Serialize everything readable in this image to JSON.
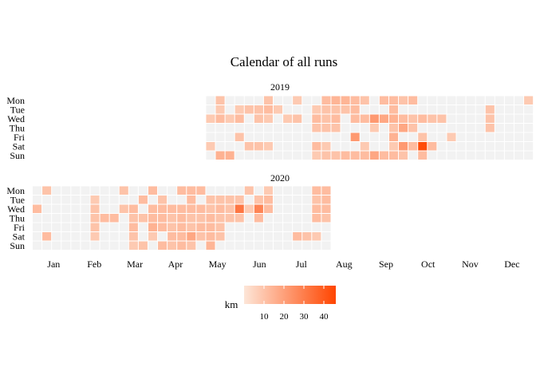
{
  "chart_data": {
    "type": "heatmap",
    "title": "Calendar of all runs",
    "legend_title": "km",
    "legend_ticks": [
      10,
      20,
      30,
      40
    ],
    "value_range": [
      0,
      46
    ],
    "color_low": "#fde6d8",
    "color_high": "#ff4500",
    "empty_color": "#f2f2f2",
    "weekdays": [
      "Mon",
      "Tue",
      "Wed",
      "Thu",
      "Fri",
      "Sat",
      "Sun"
    ],
    "months": [
      "Jan",
      "Feb",
      "Mar",
      "Apr",
      "May",
      "Jun",
      "Jul",
      "Aug",
      "Sep",
      "Oct",
      "Nov",
      "Dec"
    ],
    "panels": [
      {
        "year": "2019",
        "weeks_covered": [
          19,
          52
        ],
        "runs": [
          {
            "week": 19,
            "day": "Wed",
            "km": 8
          },
          {
            "week": 19,
            "day": "Sat",
            "km": 8
          },
          {
            "week": 20,
            "day": "Mon",
            "km": 10
          },
          {
            "week": 20,
            "day": "Tue",
            "km": 8
          },
          {
            "week": 20,
            "day": "Wed",
            "km": 12
          },
          {
            "week": 20,
            "day": "Sun",
            "km": 15
          },
          {
            "week": 21,
            "day": "Wed",
            "km": 8
          },
          {
            "week": 21,
            "day": "Sun",
            "km": 15
          },
          {
            "week": 22,
            "day": "Tue",
            "km": 8
          },
          {
            "week": 22,
            "day": "Wed",
            "km": 12
          },
          {
            "week": 22,
            "day": "Fri",
            "km": 10
          },
          {
            "week": 23,
            "day": "Tue",
            "km": 10
          },
          {
            "week": 23,
            "day": "Sat",
            "km": 10
          },
          {
            "week": 24,
            "day": "Tue",
            "km": 10
          },
          {
            "week": 24,
            "day": "Wed",
            "km": 10
          },
          {
            "week": 24,
            "day": "Sat",
            "km": 10
          },
          {
            "week": 25,
            "day": "Mon",
            "km": 10
          },
          {
            "week": 25,
            "day": "Tue",
            "km": 12
          },
          {
            "week": 25,
            "day": "Wed",
            "km": 8
          },
          {
            "week": 25,
            "day": "Sat",
            "km": 8
          },
          {
            "week": 26,
            "day": "Tue",
            "km": 8
          },
          {
            "week": 27,
            "day": "Wed",
            "km": 8
          },
          {
            "week": 28,
            "day": "Mon",
            "km": 8
          },
          {
            "week": 28,
            "day": "Wed",
            "km": 10
          },
          {
            "week": 30,
            "day": "Tue",
            "km": 8
          },
          {
            "week": 30,
            "day": "Wed",
            "km": 12
          },
          {
            "week": 30,
            "day": "Thu",
            "km": 10
          },
          {
            "week": 30,
            "day": "Sat",
            "km": 12
          },
          {
            "week": 30,
            "day": "Sun",
            "km": 8
          },
          {
            "week": 31,
            "day": "Mon",
            "km": 12
          },
          {
            "week": 31,
            "day": "Tue",
            "km": 10
          },
          {
            "week": 31,
            "day": "Wed",
            "km": 10
          },
          {
            "week": 31,
            "day": "Thu",
            "km": 10
          },
          {
            "week": 31,
            "day": "Sat",
            "km": 8
          },
          {
            "week": 31,
            "day": "Sun",
            "km": 10
          },
          {
            "week": 32,
            "day": "Mon",
            "km": 14
          },
          {
            "week": 32,
            "day": "Tue",
            "km": 10
          },
          {
            "week": 32,
            "day": "Wed",
            "km": 12
          },
          {
            "week": 32,
            "day": "Thu",
            "km": 10
          },
          {
            "week": 32,
            "day": "Sun",
            "km": 10
          },
          {
            "week": 33,
            "day": "Mon",
            "km": 14
          },
          {
            "week": 33,
            "day": "Tue",
            "km": 10
          },
          {
            "week": 33,
            "day": "Sun",
            "km": 12
          },
          {
            "week": 34,
            "day": "Mon",
            "km": 12
          },
          {
            "week": 34,
            "day": "Tue",
            "km": 12
          },
          {
            "week": 34,
            "day": "Wed",
            "km": 12
          },
          {
            "week": 34,
            "day": "Fri",
            "km": 22
          },
          {
            "week": 34,
            "day": "Sun",
            "km": 12
          },
          {
            "week": 35,
            "day": "Mon",
            "km": 10
          },
          {
            "week": 35,
            "day": "Wed",
            "km": 12
          },
          {
            "week": 35,
            "day": "Sat",
            "km": 8
          },
          {
            "week": 35,
            "day": "Sun",
            "km": 12
          },
          {
            "week": 36,
            "day": "Wed",
            "km": 22
          },
          {
            "week": 36,
            "day": "Thu",
            "km": 8
          },
          {
            "week": 36,
            "day": "Sun",
            "km": 18
          },
          {
            "week": 37,
            "day": "Mon",
            "km": 12
          },
          {
            "week": 37,
            "day": "Wed",
            "km": 18
          },
          {
            "week": 37,
            "day": "Sun",
            "km": 12
          },
          {
            "week": 38,
            "day": "Mon",
            "km": 12
          },
          {
            "week": 38,
            "day": "Tue",
            "km": 12
          },
          {
            "week": 38,
            "day": "Wed",
            "km": 15
          },
          {
            "week": 38,
            "day": "Thu",
            "km": 10
          },
          {
            "week": 38,
            "day": "Fri",
            "km": 15
          },
          {
            "week": 38,
            "day": "Sat",
            "km": 8
          },
          {
            "week": 38,
            "day": "Sun",
            "km": 12
          },
          {
            "week": 39,
            "day": "Mon",
            "km": 10
          },
          {
            "week": 39,
            "day": "Wed",
            "km": 12
          },
          {
            "week": 39,
            "day": "Thu",
            "km": 18
          },
          {
            "week": 39,
            "day": "Sat",
            "km": 22
          },
          {
            "week": 39,
            "day": "Sun",
            "km": 10
          },
          {
            "week": 40,
            "day": "Mon",
            "km": 12
          },
          {
            "week": 40,
            "day": "Wed",
            "km": 10
          },
          {
            "week": 40,
            "day": "Thu",
            "km": 10
          },
          {
            "week": 40,
            "day": "Sat",
            "km": 12
          },
          {
            "week": 41,
            "day": "Wed",
            "km": 12
          },
          {
            "week": 41,
            "day": "Fri",
            "km": 10
          },
          {
            "week": 41,
            "day": "Sat",
            "km": 44
          },
          {
            "week": 41,
            "day": "Sun",
            "km": 12
          },
          {
            "week": 42,
            "day": "Wed",
            "km": 10
          },
          {
            "week": 42,
            "day": "Sat",
            "km": 12
          },
          {
            "week": 43,
            "day": "Wed",
            "km": 10
          },
          {
            "week": 44,
            "day": "Fri",
            "km": 8
          },
          {
            "week": 48,
            "day": "Tue",
            "km": 10
          },
          {
            "week": 48,
            "day": "Wed",
            "km": 10
          },
          {
            "week": 48,
            "day": "Thu",
            "km": 10
          },
          {
            "week": 52,
            "day": "Mon",
            "km": 8
          }
        ]
      },
      {
        "year": "2020",
        "weeks_covered": [
          1,
          31
        ],
        "runs": [
          {
            "week": 1,
            "day": "Wed",
            "km": 12
          },
          {
            "week": 2,
            "day": "Mon",
            "km": 10
          },
          {
            "week": 2,
            "day": "Sat",
            "km": 12
          },
          {
            "week": 7,
            "day": "Tue",
            "km": 8
          },
          {
            "week": 7,
            "day": "Wed",
            "km": 10
          },
          {
            "week": 7,
            "day": "Thu",
            "km": 10
          },
          {
            "week": 7,
            "day": "Fri",
            "km": 10
          },
          {
            "week": 7,
            "day": "Sat",
            "km": 8
          },
          {
            "week": 8,
            "day": "Thu",
            "km": 12
          },
          {
            "week": 9,
            "day": "Thu",
            "km": 12
          },
          {
            "week": 10,
            "day": "Mon",
            "km": 10
          },
          {
            "week": 10,
            "day": "Wed",
            "km": 10
          },
          {
            "week": 11,
            "day": "Wed",
            "km": 12
          },
          {
            "week": 11,
            "day": "Thu",
            "km": 10
          },
          {
            "week": 11,
            "day": "Fri",
            "km": 12
          },
          {
            "week": 11,
            "day": "Sat",
            "km": 10
          },
          {
            "week": 11,
            "day": "Sun",
            "km": 8
          },
          {
            "week": 12,
            "day": "Tue",
            "km": 12
          },
          {
            "week": 12,
            "day": "Thu",
            "km": 10
          },
          {
            "week": 12,
            "day": "Sun",
            "km": 10
          },
          {
            "week": 13,
            "day": "Mon",
            "km": 12
          },
          {
            "week": 13,
            "day": "Wed",
            "km": 12
          },
          {
            "week": 13,
            "day": "Thu",
            "km": 12
          },
          {
            "week": 13,
            "day": "Fri",
            "km": 15
          },
          {
            "week": 13,
            "day": "Sat",
            "km": 8
          },
          {
            "week": 14,
            "day": "Tue",
            "km": 10
          },
          {
            "week": 14,
            "day": "Wed",
            "km": 12
          },
          {
            "week": 14,
            "day": "Thu",
            "km": 12
          },
          {
            "week": 14,
            "day": "Fri",
            "km": 12
          },
          {
            "week": 14,
            "day": "Sun",
            "km": 12
          },
          {
            "week": 15,
            "day": "Wed",
            "km": 12
          },
          {
            "week": 15,
            "day": "Thu",
            "km": 10
          },
          {
            "week": 15,
            "day": "Fri",
            "km": 10
          },
          {
            "week": 15,
            "day": "Sat",
            "km": 12
          },
          {
            "week": 15,
            "day": "Sun",
            "km": 10
          },
          {
            "week": 16,
            "day": "Mon",
            "km": 12
          },
          {
            "week": 16,
            "day": "Wed",
            "km": 12
          },
          {
            "week": 16,
            "day": "Thu",
            "km": 12
          },
          {
            "week": 16,
            "day": "Fri",
            "km": 12
          },
          {
            "week": 16,
            "day": "Sat",
            "km": 12
          },
          {
            "week": 16,
            "day": "Sun",
            "km": 12
          },
          {
            "week": 17,
            "day": "Mon",
            "km": 12
          },
          {
            "week": 17,
            "day": "Tue",
            "km": 12
          },
          {
            "week": 17,
            "day": "Wed",
            "km": 12
          },
          {
            "week": 17,
            "day": "Thu",
            "km": 10
          },
          {
            "week": 17,
            "day": "Fri",
            "km": 10
          },
          {
            "week": 17,
            "day": "Sat",
            "km": 18
          },
          {
            "week": 17,
            "day": "Sun",
            "km": 10
          },
          {
            "week": 18,
            "day": "Mon",
            "km": 12
          },
          {
            "week": 18,
            "day": "Wed",
            "km": 12
          },
          {
            "week": 18,
            "day": "Thu",
            "km": 10
          },
          {
            "week": 18,
            "day": "Fri",
            "km": 12
          },
          {
            "week": 18,
            "day": "Sat",
            "km": 10
          },
          {
            "week": 19,
            "day": "Tue",
            "km": 10
          },
          {
            "week": 19,
            "day": "Wed",
            "km": 10
          },
          {
            "week": 19,
            "day": "Thu",
            "km": 12
          },
          {
            "week": 19,
            "day": "Fri",
            "km": 12
          },
          {
            "week": 19,
            "day": "Sat",
            "km": 12
          },
          {
            "week": 19,
            "day": "Sun",
            "km": 14
          },
          {
            "week": 20,
            "day": "Tue",
            "km": 10
          },
          {
            "week": 20,
            "day": "Wed",
            "km": 12
          },
          {
            "week": 20,
            "day": "Thu",
            "km": 10
          },
          {
            "week": 20,
            "day": "Fri",
            "km": 10
          },
          {
            "week": 20,
            "day": "Sat",
            "km": 10
          },
          {
            "week": 21,
            "day": "Tue",
            "km": 10
          },
          {
            "week": 21,
            "day": "Wed",
            "km": 10
          },
          {
            "week": 21,
            "day": "Thu",
            "km": 10
          },
          {
            "week": 22,
            "day": "Tue",
            "km": 10
          },
          {
            "week": 22,
            "day": "Wed",
            "km": 32
          },
          {
            "week": 22,
            "day": "Thu",
            "km": 10
          },
          {
            "week": 23,
            "day": "Mon",
            "km": 10
          },
          {
            "week": 23,
            "day": "Wed",
            "km": 8
          },
          {
            "week": 24,
            "day": "Tue",
            "km": 10
          },
          {
            "week": 24,
            "day": "Wed",
            "km": 28
          },
          {
            "week": 24,
            "day": "Thu",
            "km": 12
          },
          {
            "week": 25,
            "day": "Mon",
            "km": 8
          },
          {
            "week": 25,
            "day": "Tue",
            "km": 12
          },
          {
            "week": 25,
            "day": "Wed",
            "km": 12
          },
          {
            "week": 28,
            "day": "Sat",
            "km": 12
          },
          {
            "week": 29,
            "day": "Sat",
            "km": 10
          },
          {
            "week": 30,
            "day": "Mon",
            "km": 12
          },
          {
            "week": 30,
            "day": "Tue",
            "km": 10
          },
          {
            "week": 30,
            "day": "Wed",
            "km": 12
          },
          {
            "week": 30,
            "day": "Thu",
            "km": 12
          },
          {
            "week": 30,
            "day": "Sat",
            "km": 8
          },
          {
            "week": 31,
            "day": "Mon",
            "km": 12
          },
          {
            "week": 31,
            "day": "Tue",
            "km": 12
          },
          {
            "week": 31,
            "day": "Wed",
            "km": 12
          },
          {
            "week": 31,
            "day": "Thu",
            "km": 10
          }
        ]
      }
    ]
  }
}
